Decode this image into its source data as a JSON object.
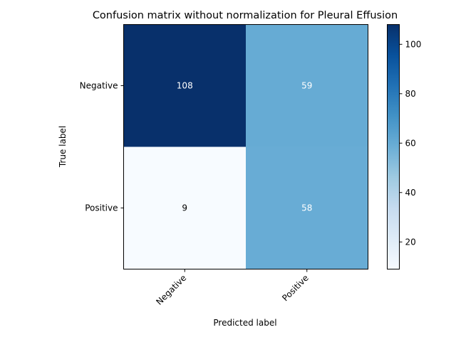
{
  "chart_data": {
    "type": "heatmap",
    "title": "Confusion matrix without normalization for Pleural Effusion",
    "xlabel": "Predicted label",
    "ylabel": "True label",
    "x_categories": [
      "Negative",
      "Positive"
    ],
    "y_categories": [
      "Negative",
      "Positive"
    ],
    "values": [
      [
        108,
        59
      ],
      [
        9,
        58
      ]
    ],
    "colormap": "Blues",
    "colorbar": {
      "range": [
        9,
        108
      ],
      "ticks": [
        20,
        40,
        60,
        80,
        100
      ]
    },
    "cell_colors": {
      "108": "#08306b",
      "59": "#66abd4",
      "58": "#68acd5",
      "9": "#f7fbff"
    },
    "text_colors": {
      "dark_bg": "#ffffff",
      "light_bg": "#000000"
    }
  }
}
